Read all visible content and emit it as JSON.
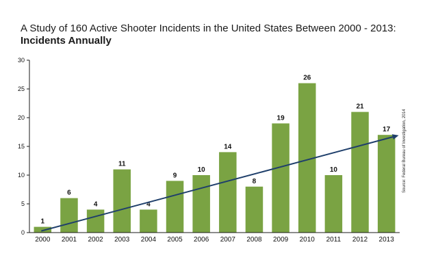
{
  "chart_data": {
    "type": "bar",
    "title": "A Study of 160 Active Shooter Incidents in the United States Between 2000 - 2013:",
    "subtitle": "Incidents Annually",
    "categories": [
      "2000",
      "2001",
      "2002",
      "2003",
      "2004",
      "2005",
      "2006",
      "2007",
      "2008",
      "2009",
      "2010",
      "2011",
      "2012",
      "2013"
    ],
    "values": [
      1,
      6,
      4,
      11,
      4,
      9,
      10,
      14,
      8,
      19,
      26,
      10,
      21,
      17
    ],
    "data_labels": [
      "1",
      "6",
      "4",
      "11",
      "4",
      "9",
      "10",
      "14",
      "8",
      "19",
      "26",
      "10",
      "21",
      "17"
    ],
    "ylim": [
      0,
      30
    ],
    "yticks": [
      0,
      5,
      10,
      15,
      20,
      25,
      30
    ],
    "ytick_labels": [
      "0",
      "5",
      "10",
      "15",
      "20",
      "25",
      "30"
    ],
    "grid": false,
    "trend_line": {
      "start": 1,
      "end": 16.8
    },
    "source": "Source: Federal Bureau of Investigation, 2014",
    "colors": {
      "bar": "#7aa343",
      "axis": "#1a1a1a",
      "trend": "#1f3f6b"
    }
  }
}
